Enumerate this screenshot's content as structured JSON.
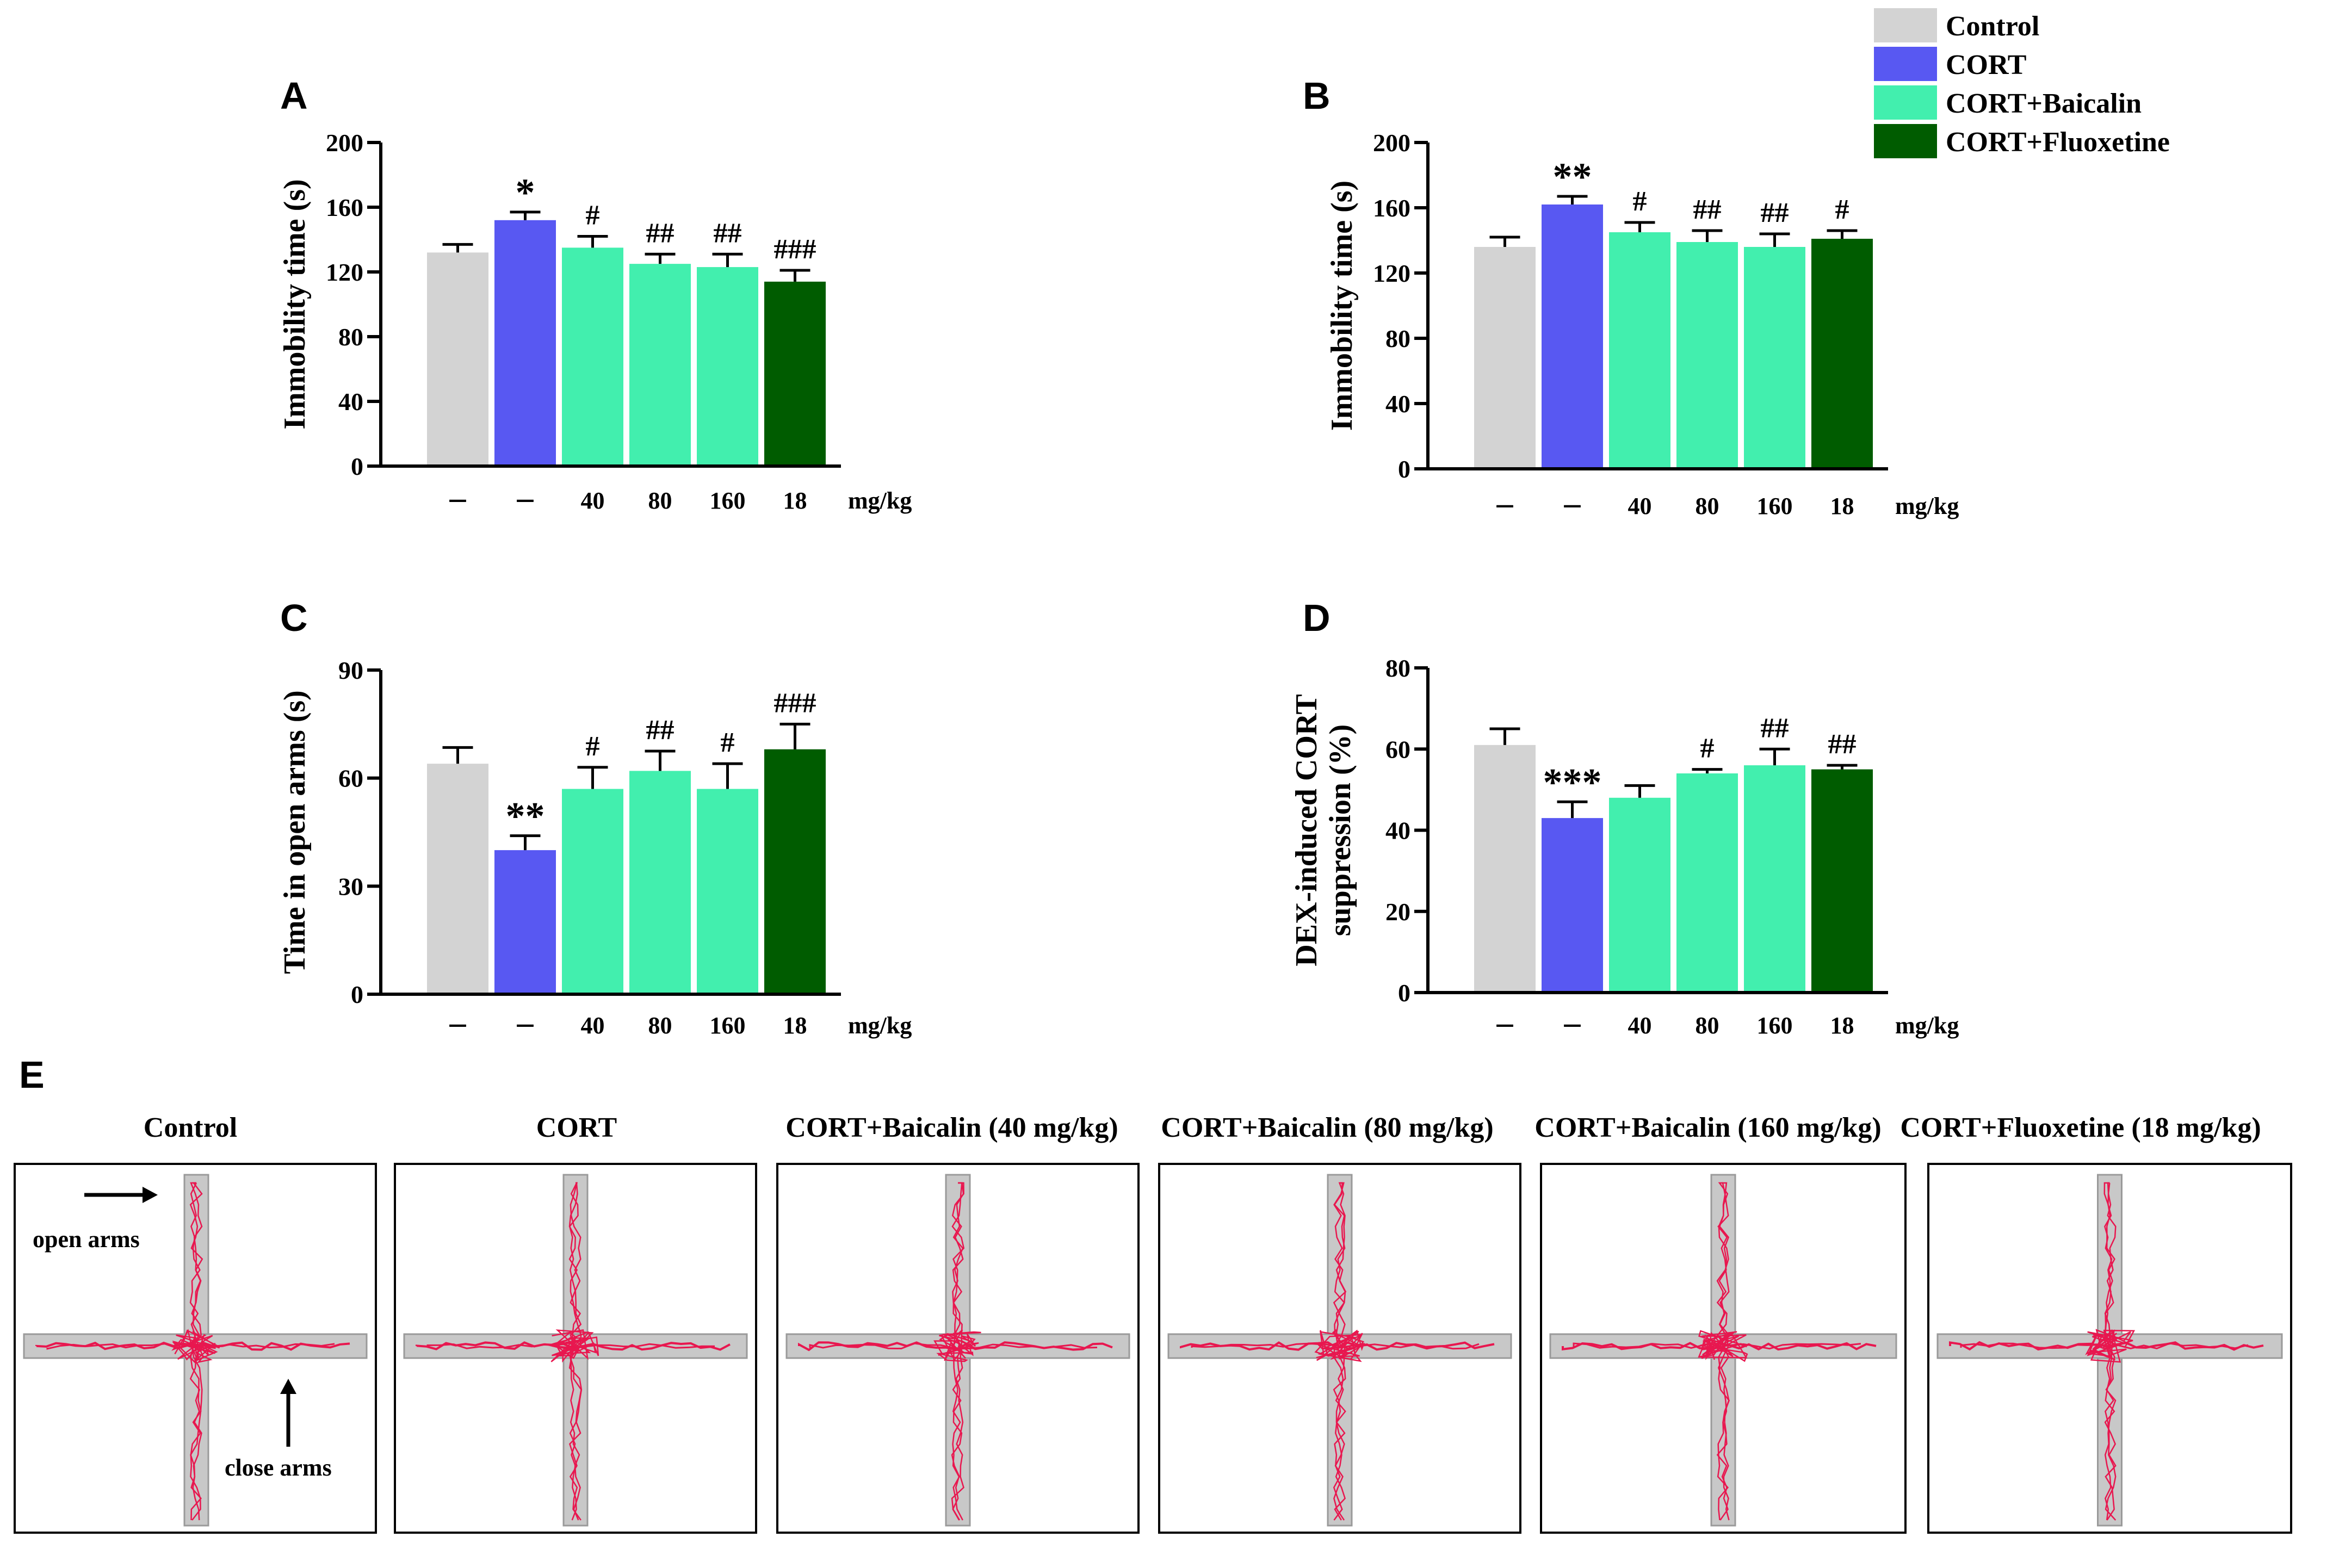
{
  "legend": [
    {
      "label": "Control",
      "color": "#d3d3d3"
    },
    {
      "label": "CORT",
      "color": "#5858f2"
    },
    {
      "label": "CORT+Baicalin",
      "color": "#42efae"
    },
    {
      "label": "CORT+Fluoxetine",
      "color": "#005c00"
    }
  ],
  "chart_data": [
    {
      "panel": "A",
      "type": "bar",
      "ylabel": "Immobility time (s)",
      "ylim": [
        0,
        200
      ],
      "yticks": [
        0,
        40,
        80,
        120,
        160,
        200
      ],
      "categories": [
        "–",
        "–",
        "40",
        "80",
        "160",
        "18"
      ],
      "unit_label": "mg/kg",
      "groups": [
        "Control",
        "CORT",
        "CORT+Baicalin",
        "CORT+Baicalin",
        "CORT+Baicalin",
        "CORT+Fluoxetine"
      ],
      "values": [
        132,
        152,
        135,
        125,
        123,
        114
      ],
      "errors": [
        5,
        5,
        7,
        6,
        8,
        7
      ],
      "annotations": [
        "",
        "*",
        "#",
        "##",
        "##",
        "###"
      ]
    },
    {
      "panel": "B",
      "type": "bar",
      "ylabel": "Immobility time (s)",
      "ylim": [
        0,
        200
      ],
      "yticks": [
        0,
        40,
        80,
        120,
        160,
        200
      ],
      "categories": [
        "–",
        "–",
        "40",
        "80",
        "160",
        "18"
      ],
      "unit_label": "mg/kg",
      "groups": [
        "Control",
        "CORT",
        "CORT+Baicalin",
        "CORT+Baicalin",
        "CORT+Baicalin",
        "CORT+Fluoxetine"
      ],
      "values": [
        136,
        162,
        145,
        139,
        136,
        141
      ],
      "errors": [
        6,
        5,
        6,
        7,
        8,
        5
      ],
      "annotations": [
        "",
        "**",
        "#",
        "##",
        "##",
        "#"
      ]
    },
    {
      "panel": "C",
      "type": "bar",
      "ylabel": "Time in open arms (s)",
      "ylim": [
        0,
        90
      ],
      "yticks": [
        0,
        30,
        60,
        90
      ],
      "categories": [
        "–",
        "–",
        "40",
        "80",
        "160",
        "18"
      ],
      "unit_label": "mg/kg",
      "groups": [
        "Control",
        "CORT",
        "CORT+Baicalin",
        "CORT+Baicalin",
        "CORT+Baicalin",
        "CORT+Fluoxetine"
      ],
      "values": [
        64,
        40,
        57,
        62,
        57,
        68
      ],
      "errors": [
        4.5,
        4,
        6,
        5.5,
        7,
        7
      ],
      "annotations": [
        "",
        "**",
        "#",
        "##",
        "#",
        "###"
      ]
    },
    {
      "panel": "D",
      "type": "bar",
      "ylabel": [
        "DEX-induced CORT",
        "suppression (%)"
      ],
      "ylim": [
        0,
        80
      ],
      "yticks": [
        0,
        20,
        40,
        60,
        80
      ],
      "categories": [
        "–",
        "–",
        "40",
        "80",
        "160",
        "18"
      ],
      "unit_label": "mg/kg",
      "groups": [
        "Control",
        "CORT",
        "CORT+Baicalin",
        "CORT+Baicalin",
        "CORT+Baicalin",
        "CORT+Fluoxetine"
      ],
      "values": [
        61,
        43,
        48,
        54,
        56,
        55
      ],
      "errors": [
        4,
        4,
        3,
        1,
        4,
        1
      ],
      "annotations": [
        "",
        "***",
        "",
        "#",
        "##",
        "##"
      ]
    }
  ],
  "panel_e": {
    "letter": "E",
    "titles": [
      "Control",
      "CORT",
      "CORT+Baicalin (40 mg/kg)",
      "CORT+Baicalin (80 mg/kg)",
      "CORT+Baicalin (160 mg/kg)",
      "CORT+Fluoxetine (18 mg/kg)"
    ],
    "open_arms_label": "open arms",
    "close_arms_label": "close arms",
    "track_color": "#e8174f"
  }
}
